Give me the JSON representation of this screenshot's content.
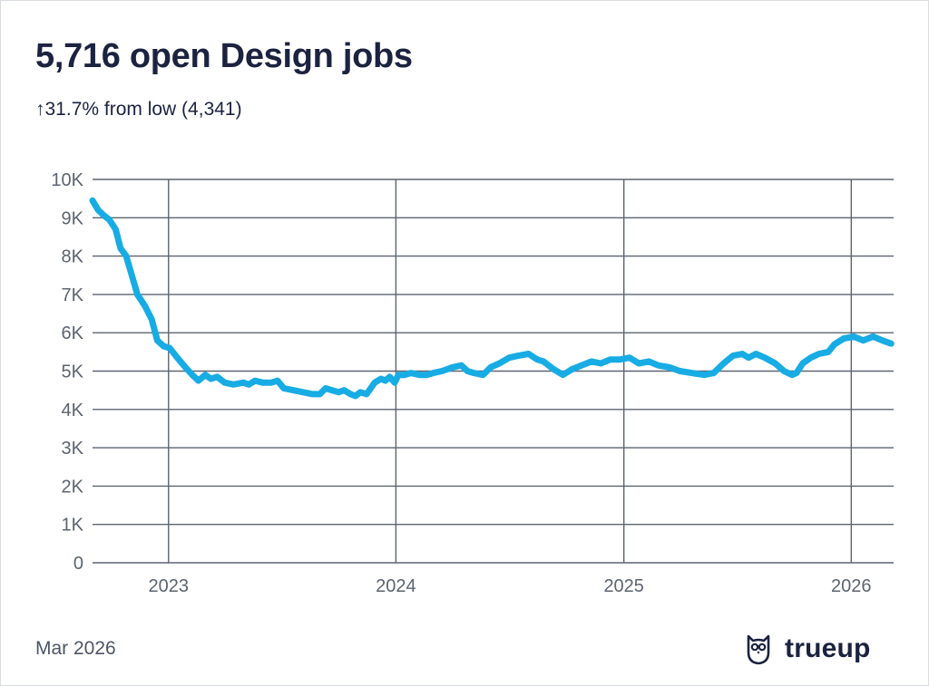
{
  "header": {
    "title": "5,716 open Design jobs",
    "subtitle": "↑31.7% from low (4,341)"
  },
  "footer": {
    "date": "Mar 2026",
    "brand": "trueup",
    "brand_icon": "owl-logo-icon"
  },
  "colors": {
    "line": "#18ace4",
    "grid": "#5c6470",
    "text": "#1c2340",
    "axis_text": "#5c6470"
  },
  "chart_data": {
    "type": "line",
    "title": "5,716 open Design jobs",
    "xlabel": "",
    "ylabel": "",
    "x_ticks": [
      "2023",
      "2024",
      "2025",
      "2026"
    ],
    "y_ticks": [
      "0",
      "1K",
      "2K",
      "3K",
      "4K",
      "5K",
      "6K",
      "7K",
      "8K",
      "9K",
      "10K"
    ],
    "xlim": [
      "2022-09-01",
      "2026-03-10"
    ],
    "ylim": [
      0,
      10000
    ],
    "grid": true,
    "series": [
      {
        "values": [
          [
            "2022-09-01",
            9450
          ],
          [
            "2022-09-10",
            9200
          ],
          [
            "2022-09-20",
            9050
          ],
          [
            "2022-09-28",
            8950
          ],
          [
            "2022-10-08",
            8700
          ],
          [
            "2022-10-16",
            8200
          ],
          [
            "2022-10-25",
            8000
          ],
          [
            "2022-11-03",
            7500
          ],
          [
            "2022-11-12",
            7000
          ],
          [
            "2022-11-24",
            6700
          ],
          [
            "2022-12-05",
            6350
          ],
          [
            "2022-12-14",
            5800
          ],
          [
            "2022-12-24",
            5650
          ],
          [
            "2023-01-03",
            5600
          ],
          [
            "2023-01-15",
            5350
          ],
          [
            "2023-01-28",
            5100
          ],
          [
            "2023-02-08",
            4900
          ],
          [
            "2023-02-18",
            4750
          ],
          [
            "2023-03-01",
            4900
          ],
          [
            "2023-03-10",
            4800
          ],
          [
            "2023-03-20",
            4850
          ],
          [
            "2023-04-01",
            4700
          ],
          [
            "2023-04-15",
            4650
          ],
          [
            "2023-05-01",
            4700
          ],
          [
            "2023-05-10",
            4650
          ],
          [
            "2023-05-20",
            4750
          ],
          [
            "2023-06-01",
            4700
          ],
          [
            "2023-06-15",
            4700
          ],
          [
            "2023-06-25",
            4750
          ],
          [
            "2023-07-05",
            4550
          ],
          [
            "2023-07-20",
            4500
          ],
          [
            "2023-08-05",
            4450
          ],
          [
            "2023-08-20",
            4400
          ],
          [
            "2023-09-01",
            4400
          ],
          [
            "2023-09-10",
            4550
          ],
          [
            "2023-09-20",
            4500
          ],
          [
            "2023-10-01",
            4450
          ],
          [
            "2023-10-10",
            4500
          ],
          [
            "2023-10-20",
            4400
          ],
          [
            "2023-10-28",
            4350
          ],
          [
            "2023-11-05",
            4450
          ],
          [
            "2023-11-15",
            4400
          ],
          [
            "2023-11-28",
            4700
          ],
          [
            "2023-12-08",
            4800
          ],
          [
            "2023-12-15",
            4750
          ],
          [
            "2023-12-22",
            4850
          ],
          [
            "2023-12-30",
            4700
          ],
          [
            "2024-01-05",
            4900
          ],
          [
            "2024-01-15",
            4900
          ],
          [
            "2024-01-25",
            4950
          ],
          [
            "2024-02-08",
            4900
          ],
          [
            "2024-02-20",
            4900
          ],
          [
            "2024-03-01",
            4950
          ],
          [
            "2024-03-15",
            5000
          ],
          [
            "2024-04-01",
            5100
          ],
          [
            "2024-04-15",
            5150
          ],
          [
            "2024-04-25",
            5000
          ],
          [
            "2024-05-05",
            4950
          ],
          [
            "2024-05-20",
            4900
          ],
          [
            "2024-06-01",
            5100
          ],
          [
            "2024-06-15",
            5200
          ],
          [
            "2024-07-01",
            5350
          ],
          [
            "2024-07-15",
            5400
          ],
          [
            "2024-08-01",
            5450
          ],
          [
            "2024-08-15",
            5300
          ],
          [
            "2024-08-25",
            5250
          ],
          [
            "2024-09-10",
            5050
          ],
          [
            "2024-09-25",
            4900
          ],
          [
            "2024-10-10",
            5050
          ],
          [
            "2024-10-25",
            5150
          ],
          [
            "2024-11-10",
            5250
          ],
          [
            "2024-11-25",
            5200
          ],
          [
            "2024-12-10",
            5300
          ],
          [
            "2024-12-25",
            5300
          ],
          [
            "2025-01-10",
            5350
          ],
          [
            "2025-01-25",
            5200
          ],
          [
            "2025-02-10",
            5250
          ],
          [
            "2025-02-25",
            5150
          ],
          [
            "2025-03-15",
            5100
          ],
          [
            "2025-04-01",
            5000
          ],
          [
            "2025-04-20",
            4950
          ],
          [
            "2025-05-10",
            4900
          ],
          [
            "2025-05-25",
            4950
          ],
          [
            "2025-06-10",
            5200
          ],
          [
            "2025-06-25",
            5400
          ],
          [
            "2025-07-10",
            5450
          ],
          [
            "2025-07-20",
            5350
          ],
          [
            "2025-08-01",
            5450
          ],
          [
            "2025-08-15",
            5350
          ],
          [
            "2025-09-01",
            5200
          ],
          [
            "2025-09-15",
            5000
          ],
          [
            "2025-09-28",
            4900
          ],
          [
            "2025-10-05",
            4950
          ],
          [
            "2025-10-15",
            5200
          ],
          [
            "2025-10-28",
            5350
          ],
          [
            "2025-11-10",
            5450
          ],
          [
            "2025-11-25",
            5500
          ],
          [
            "2025-12-05",
            5700
          ],
          [
            "2025-12-20",
            5850
          ],
          [
            "2026-01-05",
            5900
          ],
          [
            "2026-01-20",
            5800
          ],
          [
            "2026-02-05",
            5900
          ],
          [
            "2026-02-20",
            5800
          ],
          [
            "2026-03-06",
            5716
          ]
        ]
      }
    ]
  }
}
